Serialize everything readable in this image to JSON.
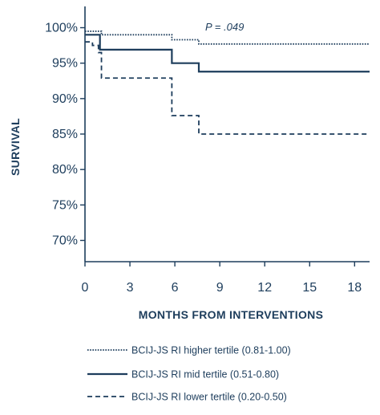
{
  "colors": {
    "ink": "#1d3d5c",
    "background": "#ffffff"
  },
  "chart_data": {
    "type": "line",
    "step": true,
    "xlabel": "MONTHS FROM INTERVENTIONS",
    "ylabel": "SURVIVAL",
    "xlim": [
      0,
      19
    ],
    "ylim": [
      67,
      103
    ],
    "x_ticks": [
      0,
      3,
      6,
      9,
      12,
      15,
      18
    ],
    "x_tick_labels": [
      "0",
      "3",
      "6",
      "9",
      "12",
      "15",
      "18"
    ],
    "y_ticks": [
      70,
      75,
      80,
      85,
      90,
      95,
      100
    ],
    "y_tick_labels": [
      "70%",
      "75%",
      "80%",
      "85%",
      "90%",
      "95%",
      "100%"
    ],
    "grid": false,
    "legend_position": "bottom",
    "annotation": "P = .049",
    "series": [
      {
        "name": "BCIJ-JS RI higher tertile (0.81-1.00)",
        "style": "dotted",
        "points": [
          [
            0,
            99.5
          ],
          [
            1.1,
            99.5
          ],
          [
            1.1,
            99.0
          ],
          [
            5.8,
            99.0
          ],
          [
            5.8,
            98.3
          ],
          [
            7.6,
            98.3
          ],
          [
            7.6,
            97.7
          ],
          [
            19,
            97.7
          ]
        ]
      },
      {
        "name": "BCIJ-JS RI mid tertile (0.51-0.80)",
        "style": "solid",
        "points": [
          [
            0,
            99.0
          ],
          [
            1.0,
            99.0
          ],
          [
            1.0,
            96.9
          ],
          [
            5.8,
            96.9
          ],
          [
            5.8,
            95.0
          ],
          [
            7.6,
            95.0
          ],
          [
            7.6,
            93.8
          ],
          [
            19,
            93.8
          ]
        ]
      },
      {
        "name": "BCIJ-JS RI lower tertile (0.20-0.50)",
        "style": "dashed",
        "points": [
          [
            0,
            98.0
          ],
          [
            0.5,
            98.0
          ],
          [
            0.5,
            97.5
          ],
          [
            0.9,
            97.5
          ],
          [
            0.9,
            96.5
          ],
          [
            1.1,
            96.5
          ],
          [
            1.1,
            92.9
          ],
          [
            5.8,
            92.9
          ],
          [
            5.8,
            87.6
          ],
          [
            7.6,
            87.6
          ],
          [
            7.6,
            85.0
          ],
          [
            19,
            85.0
          ]
        ]
      }
    ]
  }
}
